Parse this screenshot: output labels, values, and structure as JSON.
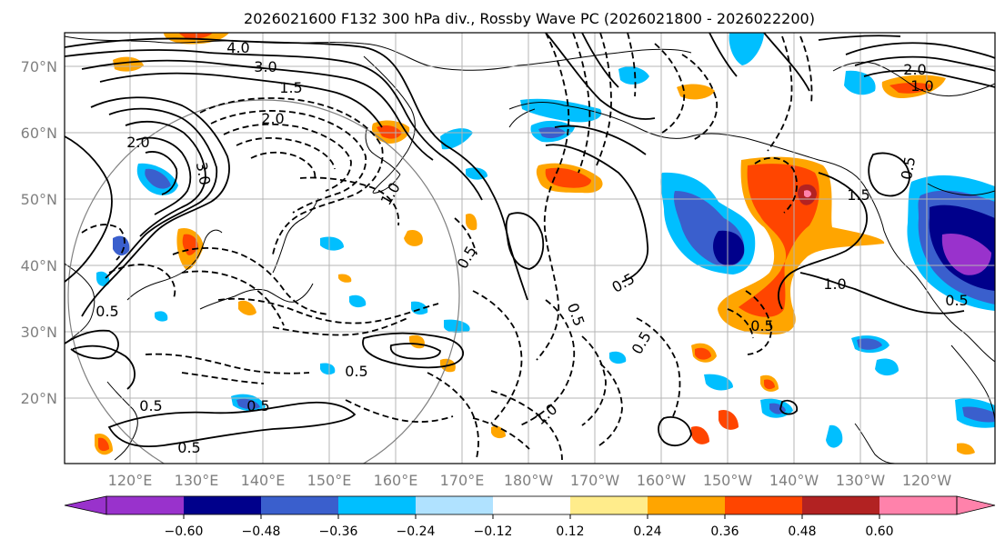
{
  "title": "2026021600 F132 300 hPa div., Rossby Wave PC (2026021800 - 2026022200)",
  "lat_labels": [
    "70°N",
    "60°N",
    "50°N",
    "40°N",
    "30°N",
    "20°N"
  ],
  "lon_labels": [
    "120°E",
    "130°E",
    "140°E",
    "150°E",
    "160°E",
    "170°E",
    "180°W",
    "170°W",
    "160°W",
    "150°W",
    "140°W",
    "130°W",
    "120°W"
  ],
  "contour_labels": [
    "4.0",
    "3.0",
    "1.5",
    "2.0",
    "2.0",
    "3.0",
    "1.0",
    "0.5",
    "0.5",
    "1.0",
    "0.5",
    "1.5",
    "0.5",
    "2.0",
    "1.0",
    "0.5",
    "0.5",
    "0.5",
    "0.5",
    "0.5",
    "1.0",
    "0.5",
    "0.5",
    "0.5"
  ],
  "colorbar": {
    "tick_labels": [
      "−0.60",
      "−0.48",
      "−0.36",
      "−0.24",
      "−0.12",
      "0.12",
      "0.24",
      "0.36",
      "0.48",
      "0.60"
    ],
    "colors": [
      "#9932cc",
      "#00008b",
      "#3a5fcd",
      "#00bfff",
      "#b0e2ff",
      "#ffffff",
      "#ffec8b",
      "#ffa500",
      "#ff4500",
      "#b22222",
      "#ff82ab"
    ]
  },
  "colors": {
    "frame": "#000000",
    "tick_label": "#808080",
    "grid": "#b4b4b4"
  }
}
